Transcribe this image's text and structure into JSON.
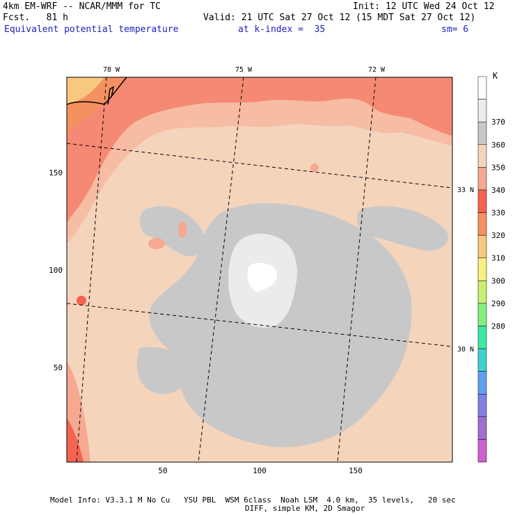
{
  "header": {
    "model_title": "4km EM-WRF -- NCAR/MMM for TC",
    "forecast_hour": "Fcst.   81 h",
    "init_time": "Init: 12 UTC Wed 24 Oct 12",
    "valid_time": "Valid: 21 UTC Sat 27 Oct 12 (15 MDT Sat 27 Oct 12)",
    "field_name": "Equivalent potential temperature",
    "level": "at k-index =  35",
    "smoothing": "sm= 6"
  },
  "map": {
    "longitude_labels": [
      "78 W",
      "75 W",
      "72 W"
    ],
    "latitude_labels": [
      "33 N",
      "30 N"
    ],
    "x_ticks": [
      "50",
      "100",
      "150"
    ],
    "y_ticks": [
      "150",
      "100",
      "50"
    ]
  },
  "colorbar": {
    "unit": "K",
    "levels": [
      "370",
      "360",
      "350",
      "340",
      "330",
      "320",
      "310",
      "300",
      "290",
      "280"
    ],
    "colors": [
      "#ffffff",
      "#ebebeb",
      "#c8c8c8",
      "#f5d4bc",
      "#f6a890",
      "#f46450",
      "#f59060",
      "#f8c880",
      "#f8f080",
      "#c8f070",
      "#80f080",
      "#40e8a0",
      "#40d0d0",
      "#60a0f0",
      "#8080e8",
      "#a070d0",
      "#d060d0"
    ]
  },
  "footer": {
    "line1": "Model Info: V3.3.1 M No Cu   YSU PBL  WSM 6class  Noah LSM  4.0 km,  35 levels,   20 sec",
    "line2": "DIFF, simple KM, 2D Smagor"
  }
}
